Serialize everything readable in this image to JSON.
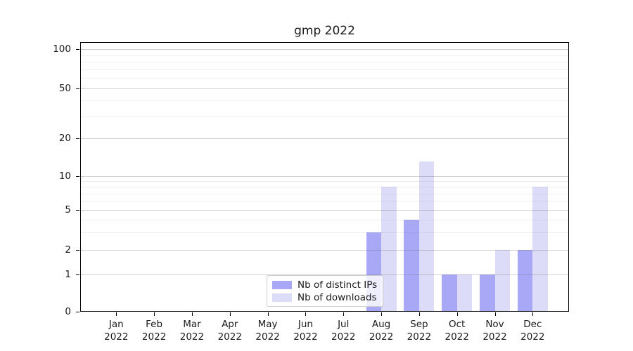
{
  "title": "gmp 2022",
  "colors": {
    "distinct_ips": "#a8a8f7",
    "downloads": "#dcdcf9",
    "axis": "#000000",
    "background": "#ffffff"
  },
  "legend": {
    "items": [
      {
        "label": "Nb of distinct IPs",
        "color": "#a8a8f7"
      },
      {
        "label": "Nb of downloads",
        "color": "#dcdcf9"
      }
    ]
  },
  "y_axis": {
    "tick_labels": [
      "100",
      "50",
      "20",
      "10",
      "5",
      "2",
      "1",
      "0"
    ]
  },
  "x_axis": {
    "tick_labels": [
      "Jan 2022",
      "Feb 2022",
      "Mar 2022",
      "Apr 2022",
      "May 2022",
      "Jun 2022",
      "Jul 2022",
      "Aug 2022",
      "Sep 2022",
      "Oct 2022",
      "Nov 2022",
      "Dec 2022"
    ]
  },
  "chart_data": {
    "type": "bar",
    "title": "gmp 2022",
    "categories": [
      "Jan 2022",
      "Feb 2022",
      "Mar 2022",
      "Apr 2022",
      "May 2022",
      "Jun 2022",
      "Jul 2022",
      "Aug 2022",
      "Sep 2022",
      "Oct 2022",
      "Nov 2022",
      "Dec 2022"
    ],
    "series": [
      {
        "name": "Nb of distinct IPs",
        "color": "#a8a8f7",
        "values": [
          0,
          0,
          0,
          0,
          0,
          0,
          0,
          3,
          4,
          1,
          1,
          2
        ]
      },
      {
        "name": "Nb of downloads",
        "color": "#dcdcf9",
        "values": [
          0,
          0,
          0,
          0,
          0,
          0,
          0,
          8,
          13,
          1,
          2,
          8
        ]
      }
    ],
    "xlabel": "",
    "ylabel": "",
    "y_scale": "quasi-log (1-2-5 ticks, zero baseline)",
    "y_ticks": [
      0,
      1,
      2,
      5,
      10,
      20,
      50,
      100
    ],
    "y_minor_ticks": [
      3,
      4,
      6,
      7,
      8,
      9,
      30,
      40,
      60,
      70,
      80,
      90
    ],
    "ylim": [
      0,
      100
    ],
    "grid": true,
    "legend_position": "lower center inside plot"
  }
}
